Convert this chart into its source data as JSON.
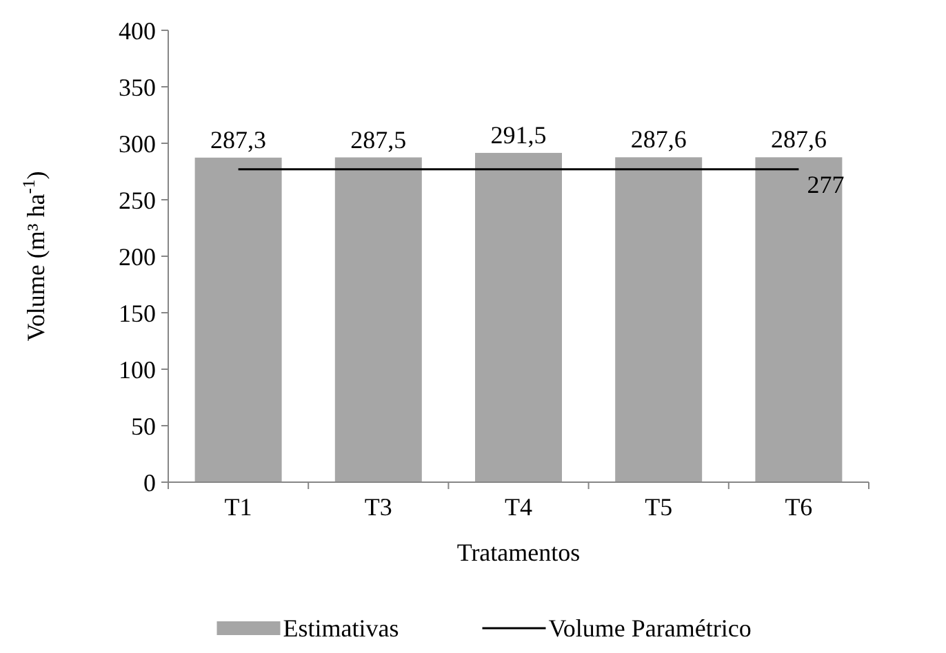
{
  "chart_data": {
    "type": "bar",
    "xlabel": "Tratamentos",
    "ylabel": "Volume  (m³ ha$^{-1}$)",
    "categories": [
      "T1",
      "T3",
      "T4",
      "T5",
      "T6"
    ],
    "series": [
      {
        "name": "Estimativas",
        "color": "#a6a6a6",
        "values": [
          287.3,
          287.5,
          291.5,
          287.6,
          287.6
        ],
        "value_labels": [
          "287,3",
          "287,5",
          "291,5",
          "287,6",
          "287,6"
        ]
      },
      {
        "name": "Volume Paramétrico",
        "type": "line",
        "color": "#000000",
        "values": [
          277,
          277,
          277,
          277,
          277
        ],
        "value_labels": [
          null,
          null,
          null,
          null,
          "277"
        ]
      }
    ],
    "ylim": [
      0,
      400
    ],
    "yticks": [
      0,
      50,
      100,
      150,
      200,
      250,
      300,
      350,
      400
    ],
    "legend": "bottom"
  }
}
